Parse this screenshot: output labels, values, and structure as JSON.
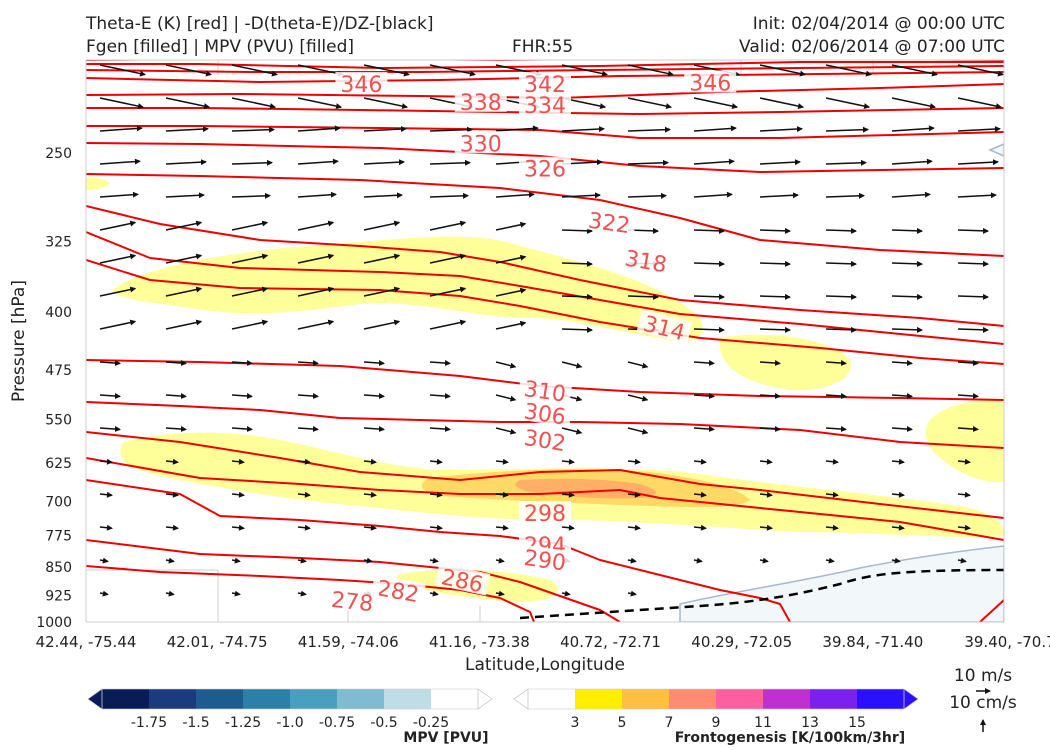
{
  "header": {
    "title_left_1": "Theta-E (K) [red] | -D(theta-E)/DZ-[black]",
    "title_left_2": "Fgen [filled] | MPV (PVU) [filled]",
    "fhr": "FHR:55",
    "init": "Init: 02/04/2014 @ 00:00 UTC",
    "valid": "Valid: 02/06/2014 @ 07:00 UTC"
  },
  "wind_key": {
    "u_label": "10 m/s",
    "w_label": "10 cm/s"
  },
  "chart_data": {
    "type": "cross-section",
    "xlabel": "Latitude,Longitude",
    "ylabel": "Pressure [hPa]",
    "x_ticks": [
      "42.44, -75.44",
      "42.01, -74.75",
      "41.59, -74.06",
      "41.16, -73.38",
      "40.72, -72.71",
      "40.29, -72.05",
      "39.84, -71.40",
      "39.40, -70.7"
    ],
    "y_ticks": [
      250,
      325,
      400,
      475,
      550,
      625,
      700,
      775,
      850,
      925,
      1000
    ],
    "y_scale": "log",
    "ylim": [
      1000,
      190
    ],
    "theta_e_color": "#ee0000",
    "theta_e_label_color": "#f05050",
    "theta_e_contours": [
      {
        "label": "346",
        "x_frac": 0.3,
        "p": 204
      },
      {
        "label": "342",
        "x_frac": 0.5,
        "p": 204
      },
      {
        "label": "346",
        "x_frac": 0.68,
        "p": 203
      },
      {
        "label": "338",
        "x_frac": 0.43,
        "p": 215
      },
      {
        "label": "334",
        "x_frac": 0.5,
        "p": 217
      },
      {
        "label": "330",
        "x_frac": 0.43,
        "p": 243
      },
      {
        "label": "326",
        "x_frac": 0.5,
        "p": 262
      },
      {
        "label": "322",
        "x_frac": 0.57,
        "p": 307
      },
      {
        "label": "318",
        "x_frac": 0.61,
        "p": 344
      },
      {
        "label": "314",
        "x_frac": 0.63,
        "p": 419
      },
      {
        "label": "310",
        "x_frac": 0.5,
        "p": 505
      },
      {
        "label": "306",
        "x_frac": 0.5,
        "p": 540
      },
      {
        "label": "302",
        "x_frac": 0.5,
        "p": 584
      },
      {
        "label": "298",
        "x_frac": 0.5,
        "p": 725
      },
      {
        "label": "294",
        "x_frac": 0.5,
        "p": 796
      },
      {
        "label": "290",
        "x_frac": 0.5,
        "p": 832
      },
      {
        "label": "286",
        "x_frac": 0.41,
        "p": 884
      },
      {
        "label": "282",
        "x_frac": 0.34,
        "p": 912
      },
      {
        "label": "278",
        "x_frac": 0.29,
        "p": 940
      }
    ],
    "colorbars": [
      {
        "label": "MPV [PVU]",
        "ticks": [
          "-1.75",
          "-1.5",
          "-1.25",
          "-1.0",
          "-0.75",
          "-0.5",
          "-0.25"
        ],
        "colors": [
          "#081d58",
          "#1a3b7c",
          "#1d5c8f",
          "#2c7fa8",
          "#4a9fc0",
          "#7fbcd2",
          "#bfdde7",
          "#ffffff"
        ]
      },
      {
        "label": "Frontogenesis [K/100km/3hr]",
        "ticks": [
          "3",
          "5",
          "7",
          "9",
          "11",
          "13",
          "15"
        ],
        "colors": [
          "#ffffff",
          "#ffee00",
          "#ffc040",
          "#ff8c70",
          "#ff5fa0",
          "#c030d0",
          "#7a20f0",
          "#2a10ff"
        ]
      }
    ]
  }
}
